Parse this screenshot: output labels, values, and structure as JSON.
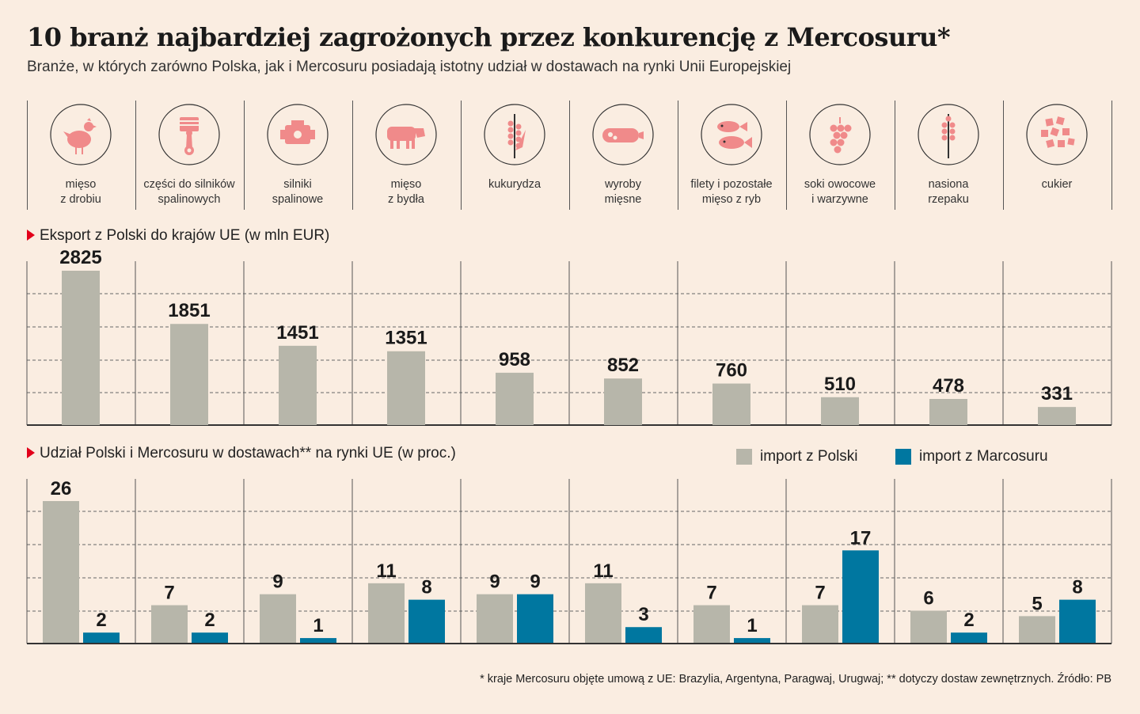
{
  "title": "10 branż najbardziej zagrożonych przez konkurencję z Mercosuru*",
  "subtitle": "Branże, w których zarówno Polska, jak i Mercosuru posiadają istotny udział w dostawach na rynki Unii Europejskiej",
  "categories": [
    {
      "label1": "mięso",
      "label2": "z drobiu",
      "icon": "chicken-icon"
    },
    {
      "label1": "części do silników",
      "label2": "spalinowych",
      "icon": "piston-icon"
    },
    {
      "label1": "silniki",
      "label2": "spalinowe",
      "icon": "engine-icon"
    },
    {
      "label1": "mięso",
      "label2": "z bydła",
      "icon": "cow-icon"
    },
    {
      "label1": "kukurydza",
      "label2": "",
      "icon": "corn-icon"
    },
    {
      "label1": "wyroby",
      "label2": "mięsne",
      "icon": "sausage-icon"
    },
    {
      "label1": "filety i pozostałe",
      "label2": "mięso z ryb",
      "icon": "fish-icon"
    },
    {
      "label1": "soki owocowe",
      "label2": "i warzywne",
      "icon": "grapes-icon"
    },
    {
      "label1": "nasiona",
      "label2": "rzepaku",
      "icon": "rapeseed-icon"
    },
    {
      "label1": "cukier",
      "label2": "",
      "icon": "sugar-cubes-icon"
    }
  ],
  "export_section": {
    "heading": "Eksport z Polski do krajów UE (w mln EUR)"
  },
  "share_section": {
    "heading": "Udział Polski i Mercosuru w dostawach** na rynki UE (w proc.)",
    "legend_poland": "import z Polski",
    "legend_mercosur": "import z Marcosuru"
  },
  "footnote": "* kraje Mercosuru objęte umową z UE: Brazylia, Argentyna, Paragwaj, Urugwaj; ** dotyczy dostaw zewnętrznych. Źródło: PB",
  "colors": {
    "background": "#faede1",
    "gray_bar": "#b7b6aa",
    "blue_bar": "#0077a0",
    "accent_red": "#e2001a",
    "icon_pink": "#f08a8a"
  },
  "chart_data": [
    {
      "type": "bar",
      "title": "Eksport z Polski do krajów UE (w mln EUR)",
      "categories": [
        "mięso z drobiu",
        "części do silników spalinowych",
        "silniki spalinowe",
        "mięso z bydła",
        "kukurydza",
        "wyroby mięsne",
        "filety i pozostałe mięso z ryb",
        "soki owocowe i warzywne",
        "nasiona rzepaku",
        "cukier"
      ],
      "values": [
        2825,
        1851,
        1451,
        1351,
        958,
        852,
        760,
        510,
        478,
        331
      ],
      "ylim": [
        0,
        3000
      ],
      "grid": true
    },
    {
      "type": "bar",
      "title": "Udział Polski i Mercosuru w dostawach** na rynki UE (w proc.)",
      "categories": [
        "mięso z drobiu",
        "części do silników spalinowych",
        "silniki spalinowe",
        "mięso z bydła",
        "kukurydza",
        "wyroby mięsne",
        "filety i pozostałe mięso z ryb",
        "soki owocowe i warzywne",
        "nasiona rzepaku",
        "cukier"
      ],
      "series": [
        {
          "name": "import z Polski",
          "values": [
            26,
            7,
            9,
            11,
            9,
            11,
            7,
            7,
            6,
            5
          ]
        },
        {
          "name": "import z Marcosuru",
          "values": [
            2,
            2,
            1,
            8,
            9,
            3,
            1,
            17,
            2,
            8
          ]
        }
      ],
      "ylim": [
        0,
        30
      ],
      "grid": true,
      "legend": "top-right"
    }
  ]
}
